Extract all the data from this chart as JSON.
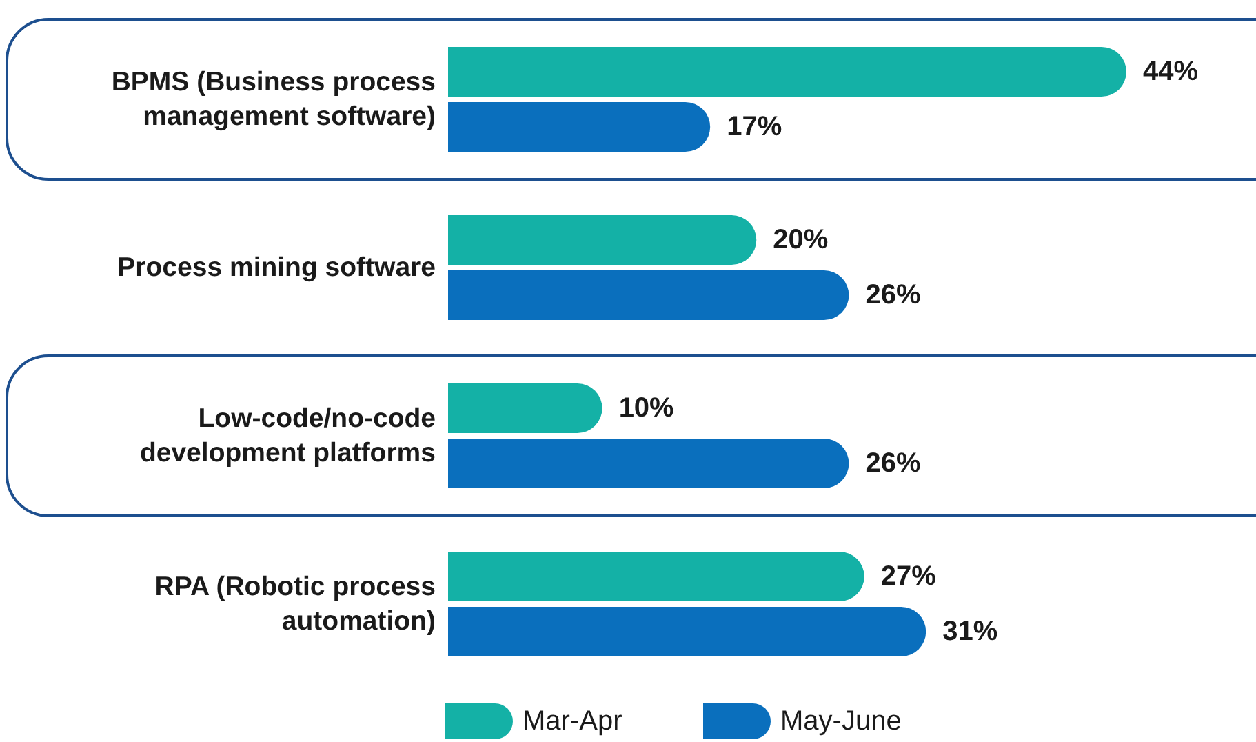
{
  "chart_data": {
    "type": "bar",
    "orientation": "horizontal",
    "categories": [
      "BPMS (Business process management software)",
      "Process mining software",
      "Low-code/no-code development platforms",
      "RPA (Robotic process automation)"
    ],
    "series": [
      {
        "name": "Mar-Apr",
        "color": "#14b1a6",
        "values": [
          44,
          20,
          10,
          27
        ],
        "value_labels": [
          "44%",
          "20%",
          "10%",
          "27%"
        ]
      },
      {
        "name": "May-June",
        "color": "#0a6fbd",
        "values": [
          17,
          26,
          26,
          31
        ],
        "value_labels": [
          "17%",
          "26%",
          "26%",
          "31%"
        ]
      }
    ],
    "legend": "bottom"
  }
}
